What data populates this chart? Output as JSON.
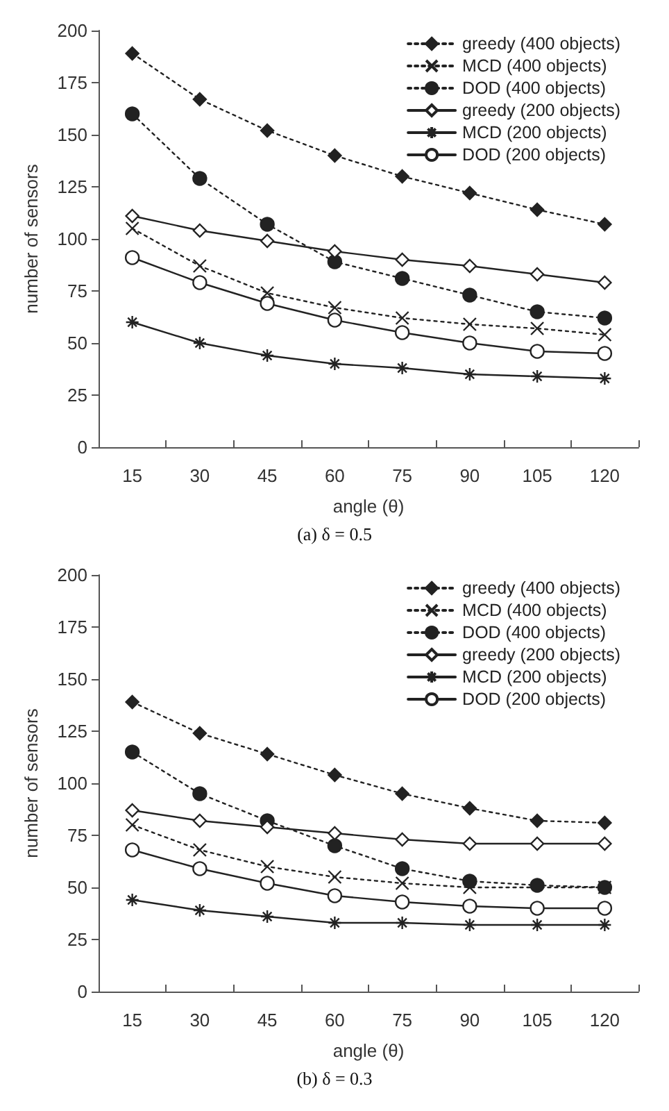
{
  "chart_data": [
    {
      "type": "line",
      "title": "(a) δ = 0.5",
      "xlabel": "angle (θ)",
      "ylabel": "number of sensors",
      "categories": [
        "15",
        "30",
        "45",
        "60",
        "75",
        "90",
        "105",
        "120"
      ],
      "ylim": [
        0,
        200
      ],
      "yticks": [
        0,
        25,
        50,
        75,
        100,
        125,
        150,
        175,
        200
      ],
      "grid": false,
      "legend": "top right",
      "series": [
        {
          "name": "greedy (400 objects)",
          "color": "#222222",
          "marker": "diamond",
          "line_style": "dotted",
          "values": [
            189,
            167,
            152,
            140,
            130,
            122,
            114,
            107
          ]
        },
        {
          "name": "MCD (400 objects)",
          "color": "#222222",
          "marker": "cross",
          "line_style": "dotted",
          "values": [
            105,
            87,
            74,
            67,
            62,
            59,
            57,
            54
          ]
        },
        {
          "name": "DOD (400 objects)",
          "color": "#222222",
          "marker": "circle",
          "line_style": "dotted",
          "values": [
            160,
            129,
            107,
            89,
            81,
            73,
            65,
            62
          ]
        },
        {
          "name": "greedy (200 objects)",
          "color": "#222222",
          "marker": "diamond",
          "line_style": "solid",
          "values": [
            111,
            104,
            99,
            94,
            90,
            87,
            83,
            79
          ]
        },
        {
          "name": "MCD (200 objects)",
          "color": "#222222",
          "marker": "cross",
          "line_style": "solid",
          "values": [
            60,
            50,
            44,
            40,
            38,
            35,
            34,
            33
          ]
        },
        {
          "name": "DOD (200 objects)",
          "color": "#222222",
          "marker": "circle",
          "line_style": "solid",
          "values": [
            91,
            79,
            69,
            61,
            55,
            50,
            46,
            45
          ]
        }
      ]
    },
    {
      "type": "line",
      "title": "(b) δ = 0.3",
      "xlabel": "angle (θ)",
      "ylabel": "number of sensors",
      "categories": [
        "15",
        "30",
        "45",
        "60",
        "75",
        "90",
        "105",
        "120"
      ],
      "ylim": [
        0,
        200
      ],
      "yticks": [
        0,
        25,
        50,
        75,
        100,
        125,
        150,
        175,
        200
      ],
      "grid": false,
      "legend": "top right",
      "series": [
        {
          "name": "greedy (400 objects)",
          "color": "#222222",
          "marker": "diamond",
          "line_style": "dotted",
          "values": [
            139,
            124,
            114,
            104,
            95,
            88,
            82,
            81
          ]
        },
        {
          "name": "MCD (400 objects)",
          "color": "#222222",
          "marker": "cross",
          "line_style": "dotted",
          "values": [
            80,
            68,
            60,
            55,
            52,
            50,
            null,
            50
          ]
        },
        {
          "name": "DOD (400 objects)",
          "color": "#222222",
          "marker": "circle",
          "line_style": "dotted",
          "values": [
            115,
            95,
            82,
            70,
            59,
            53,
            51,
            50
          ]
        },
        {
          "name": "greedy (200 objects)",
          "color": "#222222",
          "marker": "diamond",
          "line_style": "solid",
          "values": [
            87,
            82,
            79,
            76,
            73,
            71,
            71,
            71
          ]
        },
        {
          "name": "MCD (200 objects)",
          "color": "#222222",
          "marker": "cross",
          "line_style": "solid",
          "values": [
            44,
            39,
            36,
            33,
            33,
            32,
            32,
            32
          ]
        },
        {
          "name": "DOD (200 objects)",
          "color": "#222222",
          "marker": "circle",
          "line_style": "solid",
          "values": [
            68,
            59,
            52,
            46,
            43,
            41,
            40,
            40
          ]
        }
      ]
    }
  ]
}
